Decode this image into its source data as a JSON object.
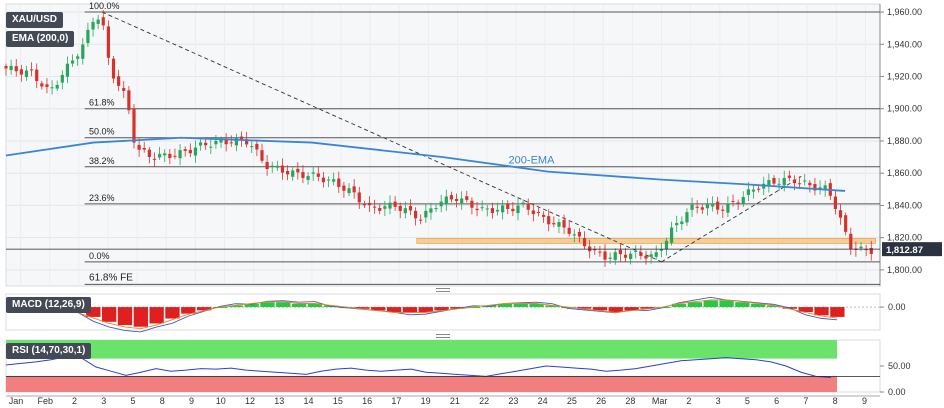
{
  "chart_data": [
    {
      "type": "candlestick",
      "symbol": "XAU/USD",
      "indicator_label": "EMA (200,0)",
      "ylim": [
        1790,
        1965
      ],
      "y_ticks": [
        "1,960.00",
        "1,940.00",
        "1,920.00",
        "1,900.00",
        "1,880.00",
        "1,860.00",
        "1,840.00",
        "1,820.00",
        "1,800.00"
      ],
      "last_price": "1,812.87",
      "x_labels": [
        "Jan",
        "Feb",
        "2",
        "3",
        "5",
        "8",
        "9",
        "10",
        "12",
        "13",
        "14",
        "15",
        "16",
        "17",
        "19",
        "21",
        "22",
        "23",
        "24",
        "25",
        "26",
        "28",
        "Mar",
        "2",
        "3",
        "5",
        "6",
        "7",
        "8",
        "9"
      ],
      "fibonacci": [
        {
          "label": "100.0%",
          "price": 1960
        },
        {
          "label": "61.8%",
          "price": 1900
        },
        {
          "label": "50.0%",
          "price": 1882
        },
        {
          "label": "38.2%",
          "price": 1864
        },
        {
          "label": "23.6%",
          "price": 1841
        },
        {
          "label": "0.0%",
          "price": 1805
        }
      ],
      "fe_label": "61.8% FE",
      "ema_label": "200-EMA",
      "ema_path": [
        [
          0,
          1871
        ],
        [
          0.1,
          1879
        ],
        [
          0.2,
          1882
        ],
        [
          0.35,
          1879
        ],
        [
          0.5,
          1870
        ],
        [
          0.62,
          1861
        ],
        [
          0.75,
          1856
        ],
        [
          0.85,
          1853
        ],
        [
          0.96,
          1849
        ]
      ],
      "support_zone_price": 1818,
      "trendline_down": [
        [
          0.11,
          1960
        ],
        [
          0.75,
          1805
        ]
      ],
      "trendline_up": [
        [
          0.75,
          1805
        ],
        [
          0.91,
          1858
        ]
      ],
      "close_path": [
        [
          0,
          1925
        ],
        [
          0.03,
          1922
        ],
        [
          0.05,
          1910
        ],
        [
          0.07,
          1925
        ],
        [
          0.09,
          1940
        ],
        [
          0.1,
          1955
        ],
        [
          0.11,
          1958
        ],
        [
          0.12,
          1925
        ],
        [
          0.14,
          1905
        ],
        [
          0.15,
          1875
        ],
        [
          0.17,
          1870
        ],
        [
          0.2,
          1872
        ],
        [
          0.23,
          1878
        ],
        [
          0.26,
          1880
        ],
        [
          0.28,
          1880
        ],
        [
          0.3,
          1865
        ],
        [
          0.33,
          1860
        ],
        [
          0.36,
          1858
        ],
        [
          0.38,
          1854
        ],
        [
          0.4,
          1848
        ],
        [
          0.42,
          1838
        ],
        [
          0.45,
          1840
        ],
        [
          0.48,
          1832
        ],
        [
          0.5,
          1842
        ],
        [
          0.52,
          1845
        ],
        [
          0.55,
          1837
        ],
        [
          0.58,
          1838
        ],
        [
          0.6,
          1840
        ],
        [
          0.62,
          1832
        ],
        [
          0.65,
          1825
        ],
        [
          0.67,
          1815
        ],
        [
          0.69,
          1808
        ],
        [
          0.72,
          1810
        ],
        [
          0.74,
          1809
        ],
        [
          0.75,
          1808
        ],
        [
          0.77,
          1825
        ],
        [
          0.79,
          1838
        ],
        [
          0.81,
          1840
        ],
        [
          0.83,
          1838
        ],
        [
          0.85,
          1845
        ],
        [
          0.87,
          1852
        ],
        [
          0.89,
          1855
        ],
        [
          0.91,
          1856
        ],
        [
          0.93,
          1852
        ],
        [
          0.95,
          1850
        ],
        [
          0.96,
          1838
        ],
        [
          0.975,
          1815
        ],
        [
          0.99,
          1812
        ]
      ]
    },
    {
      "type": "histogram",
      "indicator": "MACD (12,26,9)",
      "y_ticks": [
        "0.00"
      ],
      "values": [
        0,
        0,
        0,
        -1,
        -3,
        -6,
        -9,
        -11,
        -12,
        -10,
        -7,
        -4,
        -2,
        0,
        1,
        2,
        3,
        3,
        2,
        2,
        1,
        0,
        -1,
        -2,
        -3,
        -3,
        -3,
        -2,
        -1,
        0,
        1,
        2,
        2,
        2,
        1,
        0,
        -1,
        -2,
        -3,
        -2,
        -1,
        0,
        2,
        3,
        4,
        4,
        3,
        2,
        1,
        -1,
        -3,
        -5,
        -6
      ],
      "ylim": [
        -14,
        8
      ]
    },
    {
      "type": "line",
      "indicator": "RSI (14,70,30,1)",
      "y_ticks": [
        "50.00",
        "0.00"
      ],
      "ylim": [
        0,
        100
      ],
      "levels": [
        70,
        30
      ],
      "values": [
        52,
        55,
        58,
        62,
        68,
        66,
        48,
        40,
        32,
        38,
        45,
        40,
        42,
        45,
        44,
        46,
        42,
        40,
        38,
        36,
        34,
        40,
        44,
        46,
        42,
        40,
        42,
        44,
        38,
        36,
        34,
        32,
        30,
        35,
        40,
        45,
        50,
        48,
        46,
        44,
        40,
        42,
        45,
        50,
        55,
        60,
        62,
        64,
        66,
        64,
        62,
        58,
        50,
        38,
        30,
        28
      ]
    }
  ]
}
